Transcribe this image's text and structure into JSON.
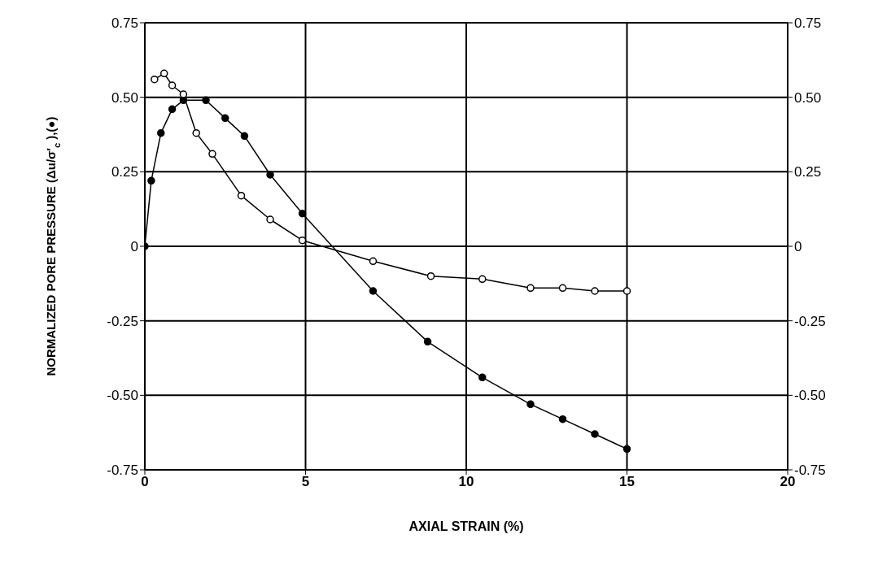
{
  "chart_data": {
    "type": "line",
    "xlabel": "AXIAL STRAIN (%)",
    "ylabel": "NORMALIZED PORE PRESSURE (Δu/σ′$_{c}$),(●)",
    "xlim": [
      0,
      20
    ],
    "xticks": [
      0,
      5,
      10,
      15,
      20
    ],
    "ylim": [
      -0.75,
      0.75
    ],
    "yticks": [
      {
        "value": -0.75,
        "label": "-0.75"
      },
      {
        "value": -0.5,
        "label": "-0.50"
      },
      {
        "value": -0.25,
        "label": "-0.25"
      },
      {
        "value": 0,
        "label": "0"
      },
      {
        "value": 0.25,
        "label": "0.25"
      },
      {
        "value": 0.5,
        "label": "0.50"
      },
      {
        "value": 0.75,
        "label": "0.75"
      }
    ],
    "y2lim": [
      -0.75,
      0.75
    ],
    "y2ticks": [
      {
        "value": -0.75,
        "label": "-0.75"
      },
      {
        "value": -0.5,
        "label": "-0.50"
      },
      {
        "value": -0.25,
        "label": "-0.25"
      },
      {
        "value": 0,
        "label": "0"
      },
      {
        "value": 0.25,
        "label": "0.25"
      },
      {
        "value": 0.5,
        "label": "0.50"
      },
      {
        "value": 0.75,
        "label": "0.75"
      }
    ],
    "grid": true,
    "marker": "circle",
    "line_style": "solid",
    "series": [
      {
        "color": "#000000",
        "x": [
          0,
          0.2,
          0.5,
          0.85,
          1.2,
          1.9,
          2.5,
          3.1,
          3.9,
          4.9,
          7.1,
          8.8,
          10.5,
          12.0,
          13.0,
          14.0,
          15.0
        ],
        "values": [
          0,
          0.22,
          0.38,
          0.46,
          0.49,
          0.49,
          0.43,
          0.37,
          0.24,
          0.11,
          -0.15,
          -0.32,
          -0.44,
          -0.53,
          -0.58,
          -0.63,
          -0.68
        ]
      },
      {
        "color": "#000000",
        "axis": "y2",
        "x": [
          0.3,
          0.6,
          0.85,
          1.2,
          1.6,
          2.1,
          3.0,
          3.9,
          4.9,
          7.1,
          8.9,
          10.5,
          12.0,
          13.0,
          14.0,
          15.0
        ],
        "values": [
          0.56,
          0.58,
          0.54,
          0.51,
          0.38,
          0.31,
          0.17,
          0.09,
          0.02,
          -0.05,
          -0.1,
          -0.11,
          -0.14,
          -0.14,
          -0.15,
          -0.15
        ]
      }
    ]
  }
}
